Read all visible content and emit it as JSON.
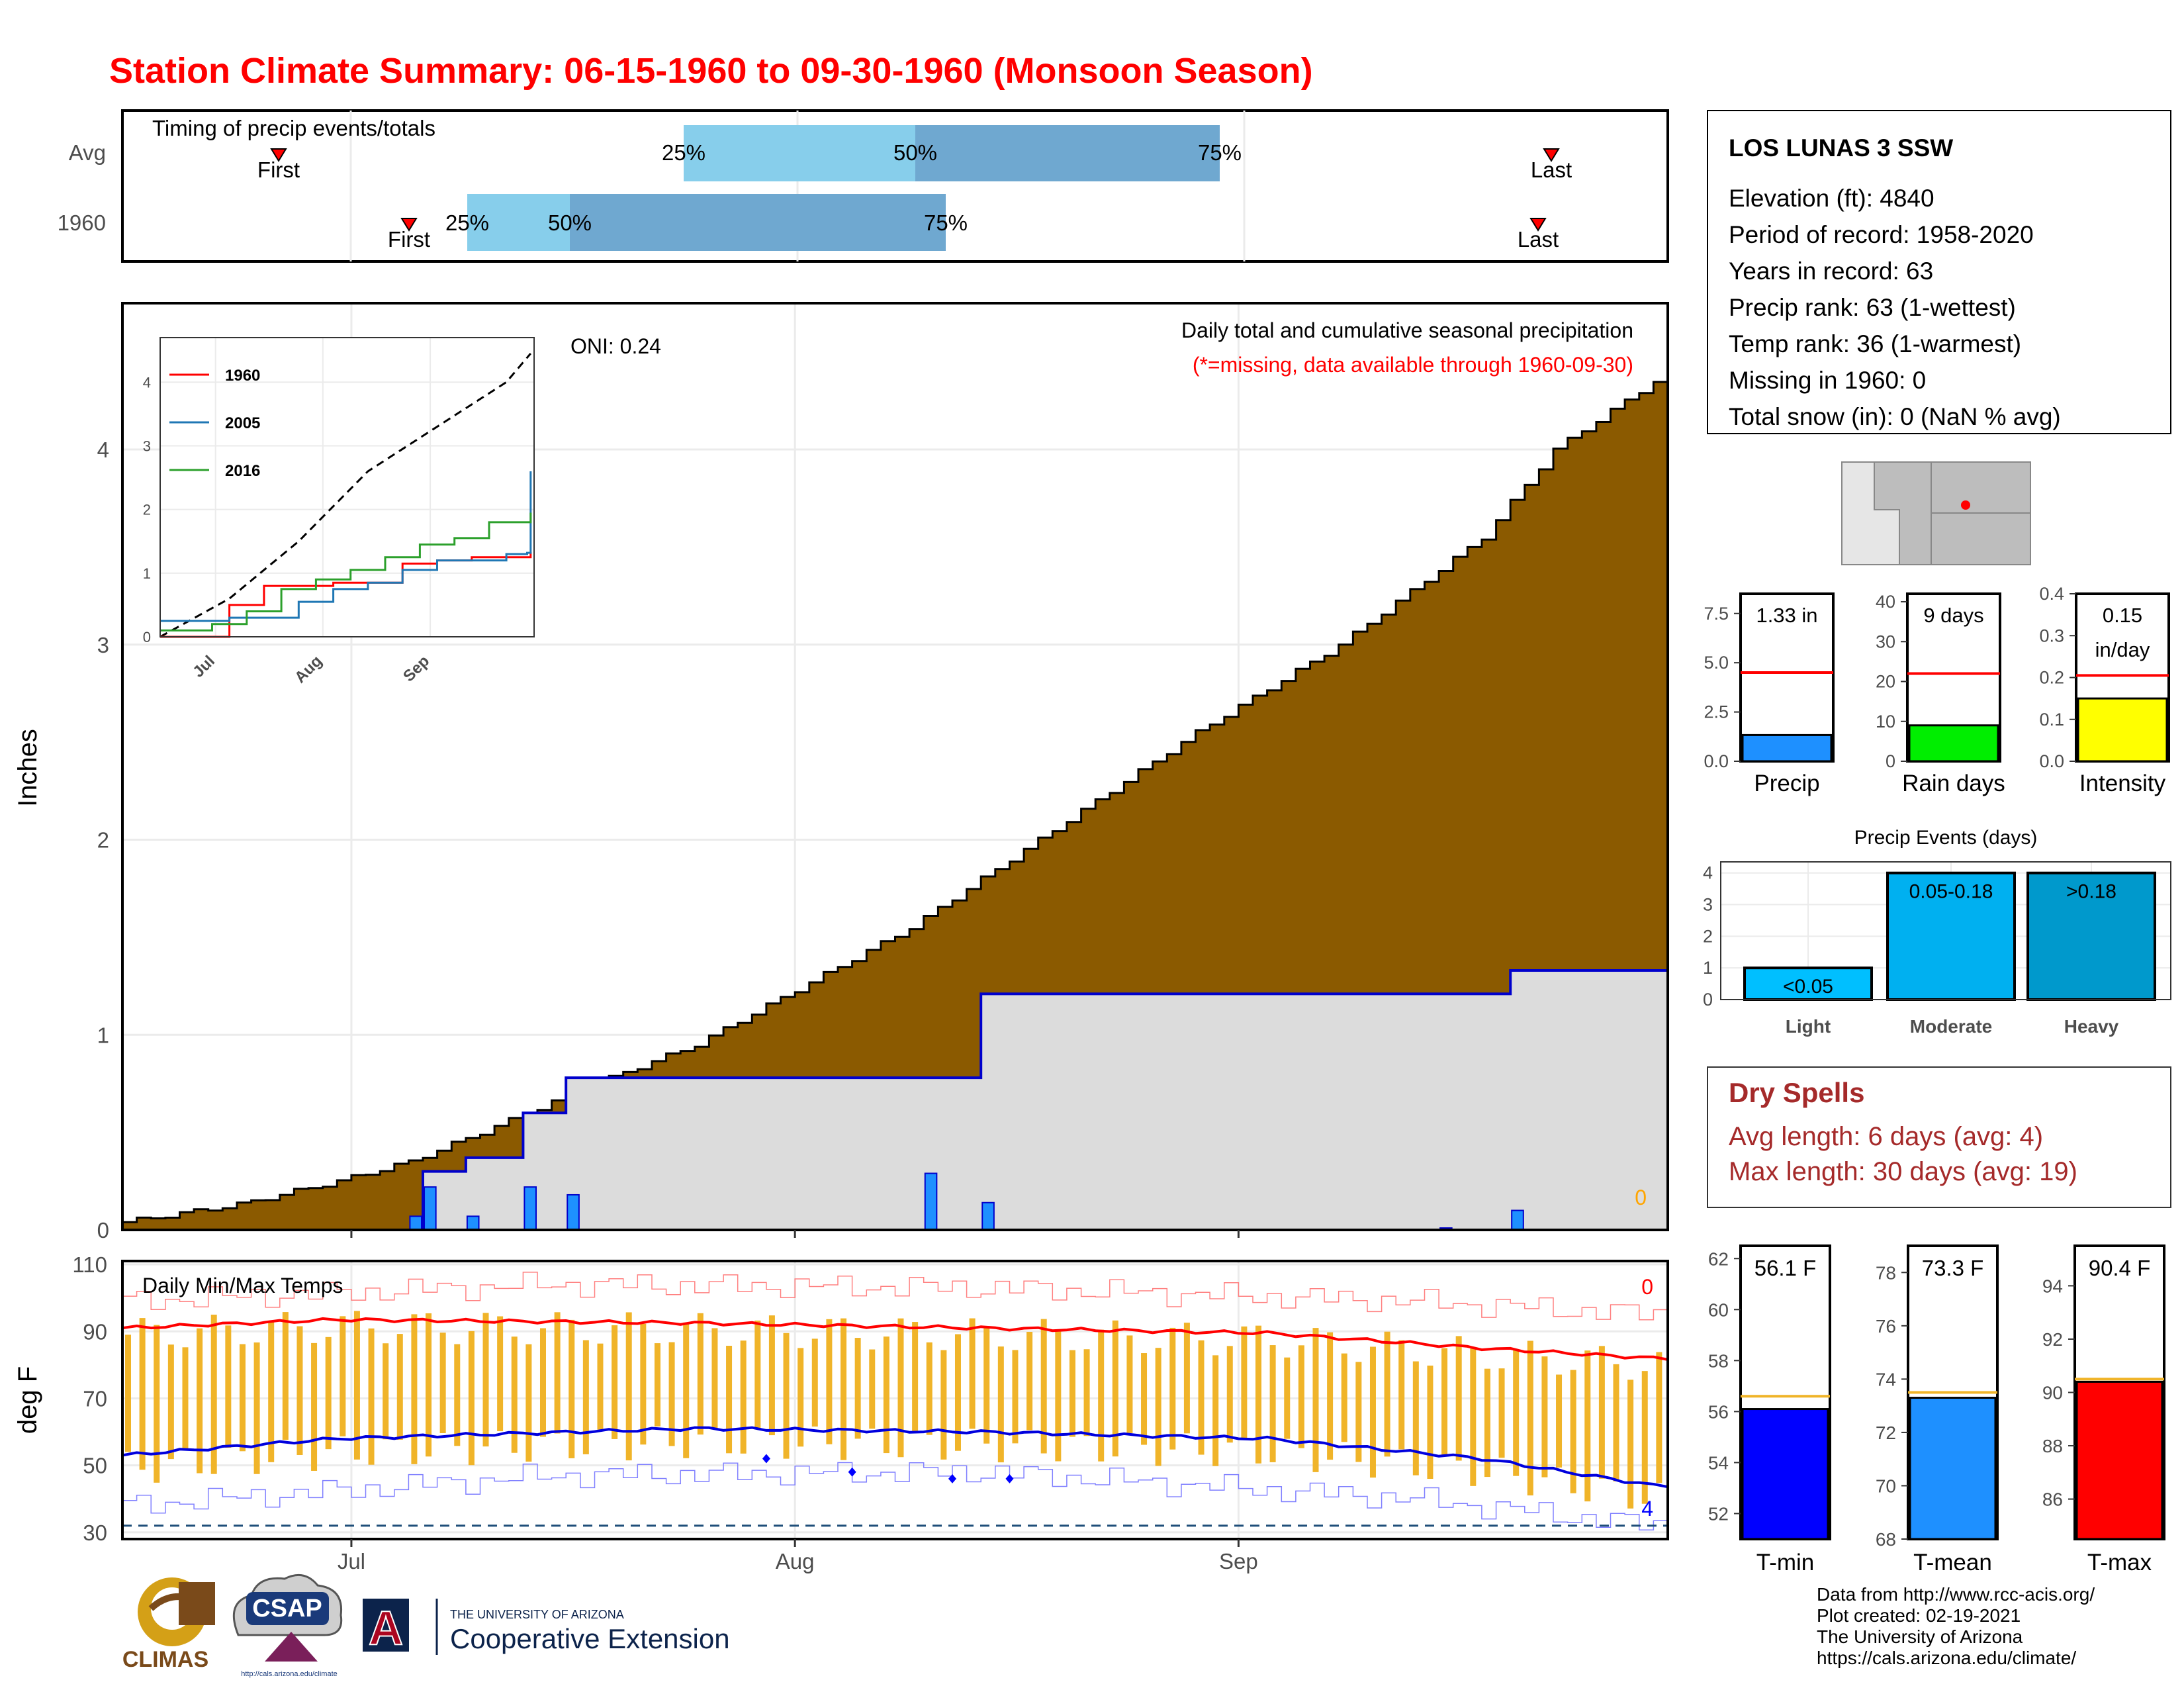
{
  "title": "Station Climate Summary: 06-15-1960 to 09-30-1960 (Monsoon Season)",
  "colors": {
    "title": "#ff0000",
    "cumulative_fill": "#8b5a00",
    "avg_fill": "#dcdcdc",
    "avg_line": "#0000cc",
    "daily_bar": "#1e90ff",
    "q1": "#87ceeb",
    "q2": "#6fa8d0",
    "temp_bar": "#f0b429",
    "tmax_line": "#ff0000",
    "tmin_line": "#0000dd",
    "drought_red": "#a52a2a"
  },
  "timing": {
    "label": "Timing of precip events/totals",
    "row_labels": [
      "Avg",
      "1960"
    ],
    "first_label": "First",
    "last_label": "Last",
    "pct_labels": [
      "25%",
      "50%",
      "75%"
    ]
  },
  "main_panel": {
    "ylabel": "Inches",
    "oni": "ONI: 0.24",
    "legend_title": "Daily total and cumulative seasonal precipitation",
    "missing_note": "(*=missing, data available through 1960-09-30)",
    "missing_count": "0",
    "y_ticks": [
      "0",
      "1",
      "2",
      "3",
      "4"
    ]
  },
  "inset": {
    "y_ticks": [
      "0",
      "1",
      "2",
      "3",
      "4"
    ],
    "x_ticks": [
      "Jul",
      "Aug",
      "Sep"
    ],
    "legend": [
      {
        "name": "1960",
        "color": "#ff0000"
      },
      {
        "name": "2005",
        "color": "#1f77b4"
      },
      {
        "name": "2016",
        "color": "#2ca02c"
      }
    ]
  },
  "temp_panel": {
    "ylabel": "deg F",
    "label": "Daily Min/Max Temps",
    "missing_count_top": "0",
    "missing_count_bottom": "4",
    "y_ticks": [
      "30",
      "50",
      "70",
      "90",
      "110"
    ],
    "x_ticks": [
      "Jul",
      "Aug",
      "Sep"
    ]
  },
  "station": {
    "name": "LOS LUNAS 3 SSW",
    "lines": [
      "Elevation (ft): 4840",
      "Period of record: 1958-2020",
      "Years in record: 63",
      "Precip rank: 63 (1-wettest)",
      "Temp rank: 36 (1-warmest)",
      "Missing in 1960: 0",
      "Total snow (in): 0 (NaN % avg)"
    ]
  },
  "small_bars": [
    {
      "label": "Precip",
      "value_label": "1.33 in",
      "value": 1.33,
      "avg": 4.5,
      "max": 8.5,
      "ticks": [
        "0.0",
        "2.5",
        "5.0",
        "7.5"
      ],
      "tick_values": [
        0,
        2.5,
        5,
        7.5
      ],
      "color": "#1e90ff"
    },
    {
      "label": "Rain days",
      "value_label": "9 days",
      "value": 9,
      "avg": 22,
      "max": 42,
      "ticks": [
        "0",
        "10",
        "20",
        "30",
        "40"
      ],
      "tick_values": [
        0,
        10,
        20,
        30,
        40
      ],
      "color": "#00ee00"
    },
    {
      "label": "Intensity",
      "value_label": "0.15",
      "value_label2": "in/day",
      "value": 0.15,
      "avg": 0.205,
      "max": 0.4,
      "ticks": [
        "0.0",
        "0.1",
        "0.2",
        "0.3",
        "0.4"
      ],
      "tick_values": [
        0,
        0.1,
        0.2,
        0.3,
        0.4
      ],
      "color": "#ffff00"
    }
  ],
  "precip_events": {
    "title": "Precip Events (days)",
    "y_ticks": [
      "0",
      "1",
      "2",
      "3",
      "4"
    ],
    "bars": [
      {
        "label": "Light",
        "range": "<0.05",
        "value": 1,
        "color": "#00bfff"
      },
      {
        "label": "Moderate",
        "range": "0.05-0.18",
        "value": 4,
        "color": "#00b0f0"
      },
      {
        "label": "Heavy",
        "range": ">0.18",
        "value": 4,
        "color": "#0099cc"
      }
    ]
  },
  "dry_spells": {
    "title": "Dry Spells",
    "avg_line": "Avg length: 6 days (avg: 4)",
    "max_line": "Max length: 30 days (avg: 19)"
  },
  "temp_bars": [
    {
      "label": "T-min",
      "value_label": "56.1 F",
      "value": 56.1,
      "avg": 56.6,
      "ymin": 51,
      "ymax": 62.5,
      "ticks": [
        "52",
        "54",
        "56",
        "58",
        "60",
        "62"
      ],
      "tick_values": [
        52,
        54,
        56,
        58,
        60,
        62
      ],
      "color": "#0000ff"
    },
    {
      "label": "T-mean",
      "value_label": "73.3 F",
      "value": 73.3,
      "avg": 73.5,
      "ymin": 68,
      "ymax": 79,
      "ticks": [
        "68",
        "70",
        "72",
        "74",
        "76",
        "78"
      ],
      "tick_values": [
        68,
        70,
        72,
        74,
        76,
        78
      ],
      "color": "#1e90ff"
    },
    {
      "label": "T-max",
      "value_label": "90.4 F",
      "value": 90.4,
      "avg": 90.5,
      "ymin": 84.5,
      "ymax": 95.5,
      "ticks": [
        "86",
        "88",
        "90",
        "92",
        "94"
      ],
      "tick_values": [
        86,
        88,
        90,
        92,
        94
      ],
      "color": "#ff0000"
    }
  ],
  "footer": {
    "lines": [
      "Data from http://www.rcc-acis.org/",
      "Plot created: 02-19-2021",
      "The University of Arizona",
      "https://cals.arizona.edu/climate/"
    ],
    "logo_climas": "CLIMAS",
    "logo_csap": "CSAP",
    "logo_csap_url": "http://cals.arizona.edu/climate",
    "logo_ua_small": "THE UNIVERSITY OF ARIZONA",
    "logo_ua_big": "Cooperative Extension",
    "logo_ua_letter": "A"
  },
  "chart_data": [
    {
      "type": "area",
      "title": "Daily total and cumulative seasonal precipitation",
      "ylabel": "Inches",
      "xlim": [
        "1960-06-15",
        "1960-09-30"
      ],
      "ylim": [
        0,
        4.75
      ],
      "x_ticks": [
        "Jul",
        "Aug",
        "Sep"
      ],
      "series": [
        {
          "name": "avg cumulative",
          "x_day": [
            0,
            8,
            15,
            20,
            25,
            33,
            40,
            45,
            55,
            65,
            75,
            85,
            95,
            100,
            107
          ],
          "values": [
            0.04,
            0.13,
            0.25,
            0.35,
            0.5,
            0.75,
            0.95,
            1.15,
            1.55,
            2.05,
            2.55,
            3.0,
            3.55,
            4.0,
            4.35
          ]
        },
        {
          "name": "1960 cumulative",
          "x_day": [
            0,
            20,
            21,
            24,
            28,
            31,
            56,
            60,
            97,
            106
          ],
          "values": [
            0,
            0,
            0.3,
            0.37,
            0.6,
            0.78,
            0.78,
            1.21,
            1.33,
            1.33
          ]
        },
        {
          "name": "1960 daily",
          "x_day": [
            20,
            21,
            24,
            28,
            31,
            56,
            60,
            92,
            97
          ],
          "values": [
            0.07,
            0.22,
            0.07,
            0.22,
            0.18,
            0.29,
            0.14,
            0.01,
            0.1
          ]
        }
      ]
    },
    {
      "type": "line",
      "title": "",
      "x_ticks": [
        "Jul",
        "Aug",
        "Sep"
      ],
      "ylim": [
        0,
        4.7
      ],
      "series": [
        {
          "name": "avg",
          "x_day": [
            0,
            20,
            40,
            60,
            80,
            100,
            107
          ],
          "values": [
            0,
            0.6,
            1.5,
            2.6,
            3.3,
            4.0,
            4.45
          ]
        },
        {
          "name": "1960",
          "x_day": [
            0,
            10,
            20,
            30,
            50,
            60,
            70,
            80,
            90,
            107
          ],
          "values": [
            0,
            0,
            0.5,
            0.8,
            0.85,
            0.85,
            1.15,
            1.2,
            1.25,
            1.33
          ]
        },
        {
          "name": "2005",
          "x_day": [
            0,
            20,
            40,
            50,
            60,
            70,
            80,
            100,
            106,
            107
          ],
          "values": [
            0.25,
            0.3,
            0.55,
            0.75,
            0.85,
            1.05,
            1.2,
            1.3,
            1.32,
            2.6
          ]
        },
        {
          "name": "2016",
          "x_day": [
            0,
            15,
            25,
            35,
            45,
            55,
            65,
            75,
            85,
            95,
            107
          ],
          "values": [
            0.1,
            0.2,
            0.4,
            0.75,
            0.9,
            1.05,
            1.25,
            1.45,
            1.55,
            1.8,
            1.95
          ]
        }
      ]
    },
    {
      "type": "bar",
      "title": "Daily Min/Max Temps",
      "ylabel": "deg F",
      "ylim": [
        28,
        111
      ],
      "x_ticks": [
        "Jul",
        "Aug",
        "Sep"
      ],
      "series": [
        {
          "name": "avg max",
          "x_day": [
            0,
            15,
            40,
            60,
            80,
            95,
            107
          ],
          "values": [
            91,
            93.5,
            92.5,
            91,
            89.5,
            85,
            82
          ]
        },
        {
          "name": "avg min",
          "x_day": [
            0,
            15,
            40,
            60,
            80,
            95,
            107
          ],
          "values": [
            53,
            58,
            61,
            60,
            58,
            52,
            44
          ]
        },
        {
          "name": "record max",
          "x_day": [
            0,
            30,
            60,
            90,
            107
          ],
          "values": [
            99,
            104,
            103,
            99,
            95
          ]
        },
        {
          "name": "record min",
          "x_day": [
            0,
            30,
            60,
            90,
            107
          ],
          "values": [
            38,
            47,
            48,
            40,
            32
          ]
        }
      ]
    }
  ]
}
